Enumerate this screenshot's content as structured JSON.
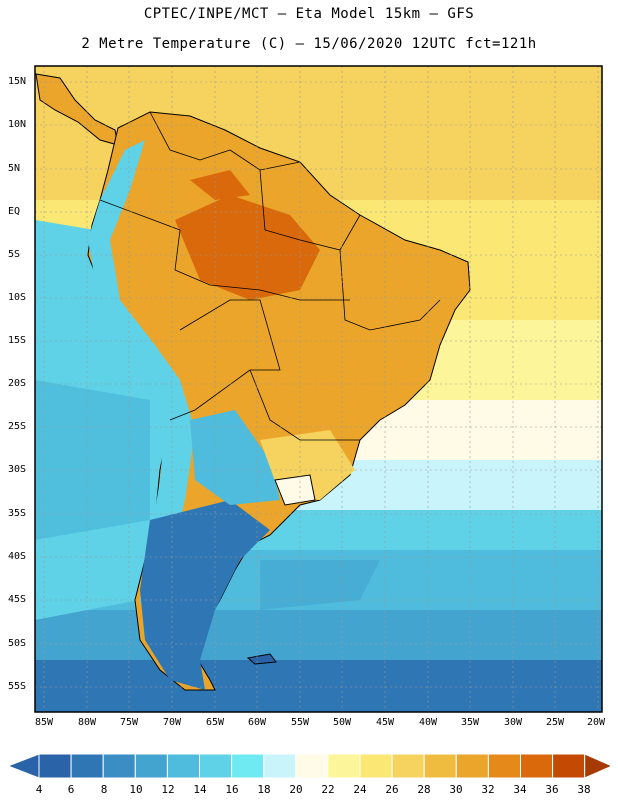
{
  "header": {
    "line1": "CPTEC/INPE/MCT –  Eta Model 15km – GFS",
    "line2": "2 Metre Temperature (C) – 15/06/2020 12UTC fct=121h"
  },
  "map": {
    "lat_ticks": [
      "15N",
      "10N",
      "5N",
      "EQ",
      "5S",
      "10S",
      "15S",
      "20S",
      "25S",
      "30S",
      "35S",
      "40S",
      "45S",
      "50S",
      "55S"
    ],
    "lon_ticks": [
      "85W",
      "80W",
      "75W",
      "70W",
      "65W",
      "60W",
      "55W",
      "50W",
      "45W",
      "40W",
      "35W",
      "30W",
      "25W",
      "20W"
    ]
  },
  "colorbar": {
    "labels": [
      "4",
      "6",
      "8",
      "10",
      "12",
      "14",
      "16",
      "18",
      "20",
      "22",
      "24",
      "26",
      "28",
      "30",
      "32",
      "34",
      "36",
      "38"
    ],
    "colors": [
      "#2a63a8",
      "#2f76b5",
      "#3a8ec3",
      "#44a4d0",
      "#4fbcdd",
      "#5fd2e8",
      "#6feaf2",
      "#c9f4fb",
      "#fffbe6",
      "#fdf59a",
      "#fbe774",
      "#f6d25e",
      "#f0bc40",
      "#eba52a",
      "#e58a1a",
      "#d9690b",
      "#c44a04",
      "#a63a02"
    ]
  }
}
